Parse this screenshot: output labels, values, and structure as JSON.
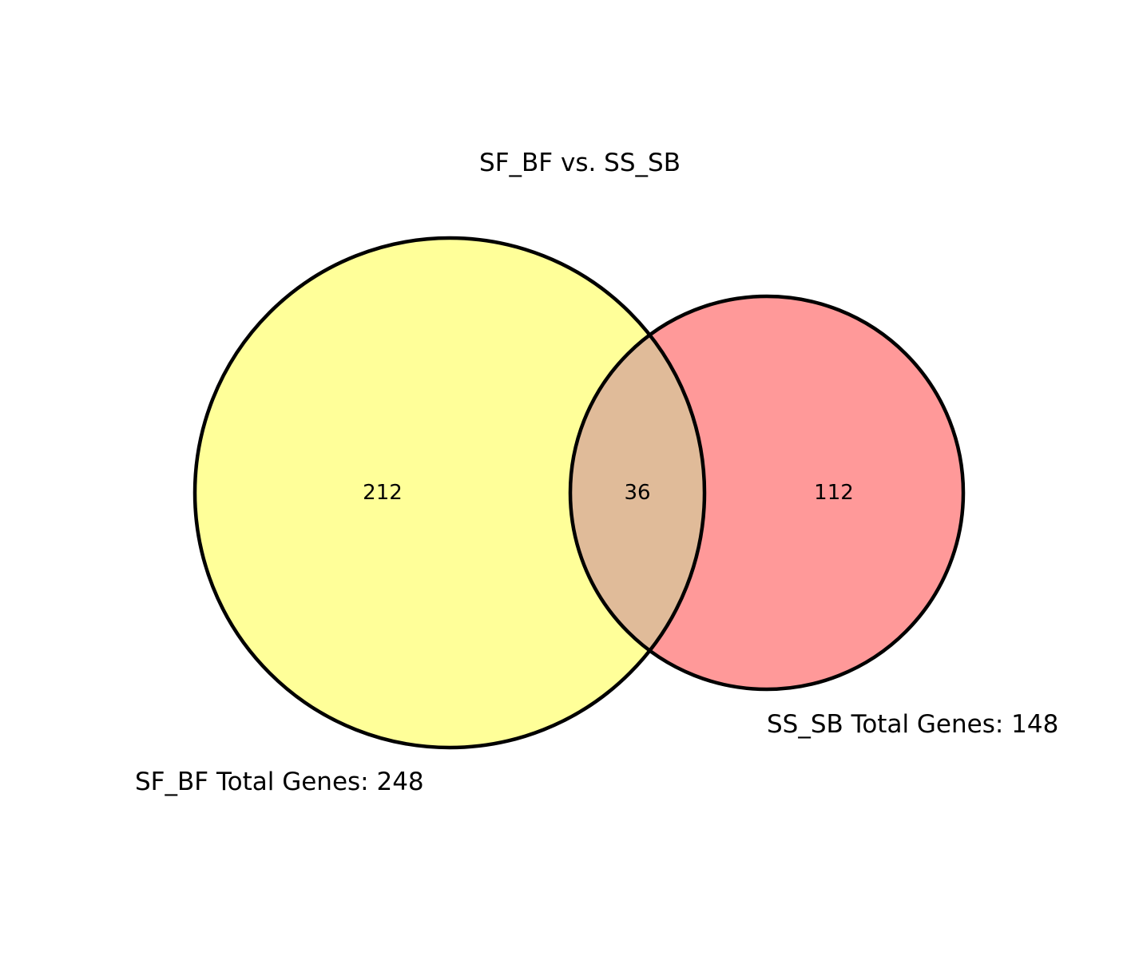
{
  "title": "SF_BF vs. SS_SB",
  "sets": [
    {
      "id": "sf_bf",
      "label": "SF_BF Total Genes: 248",
      "only_count": "212",
      "color": "#ffff99"
    },
    {
      "id": "ss_sb",
      "label": "SS_SB Total Genes: 148",
      "only_count": "112",
      "color": "#ff9999"
    }
  ],
  "intersection": {
    "count": "36",
    "color": "#e0bb99"
  },
  "outline_color": "#000000",
  "background_color": "#ffffff"
}
